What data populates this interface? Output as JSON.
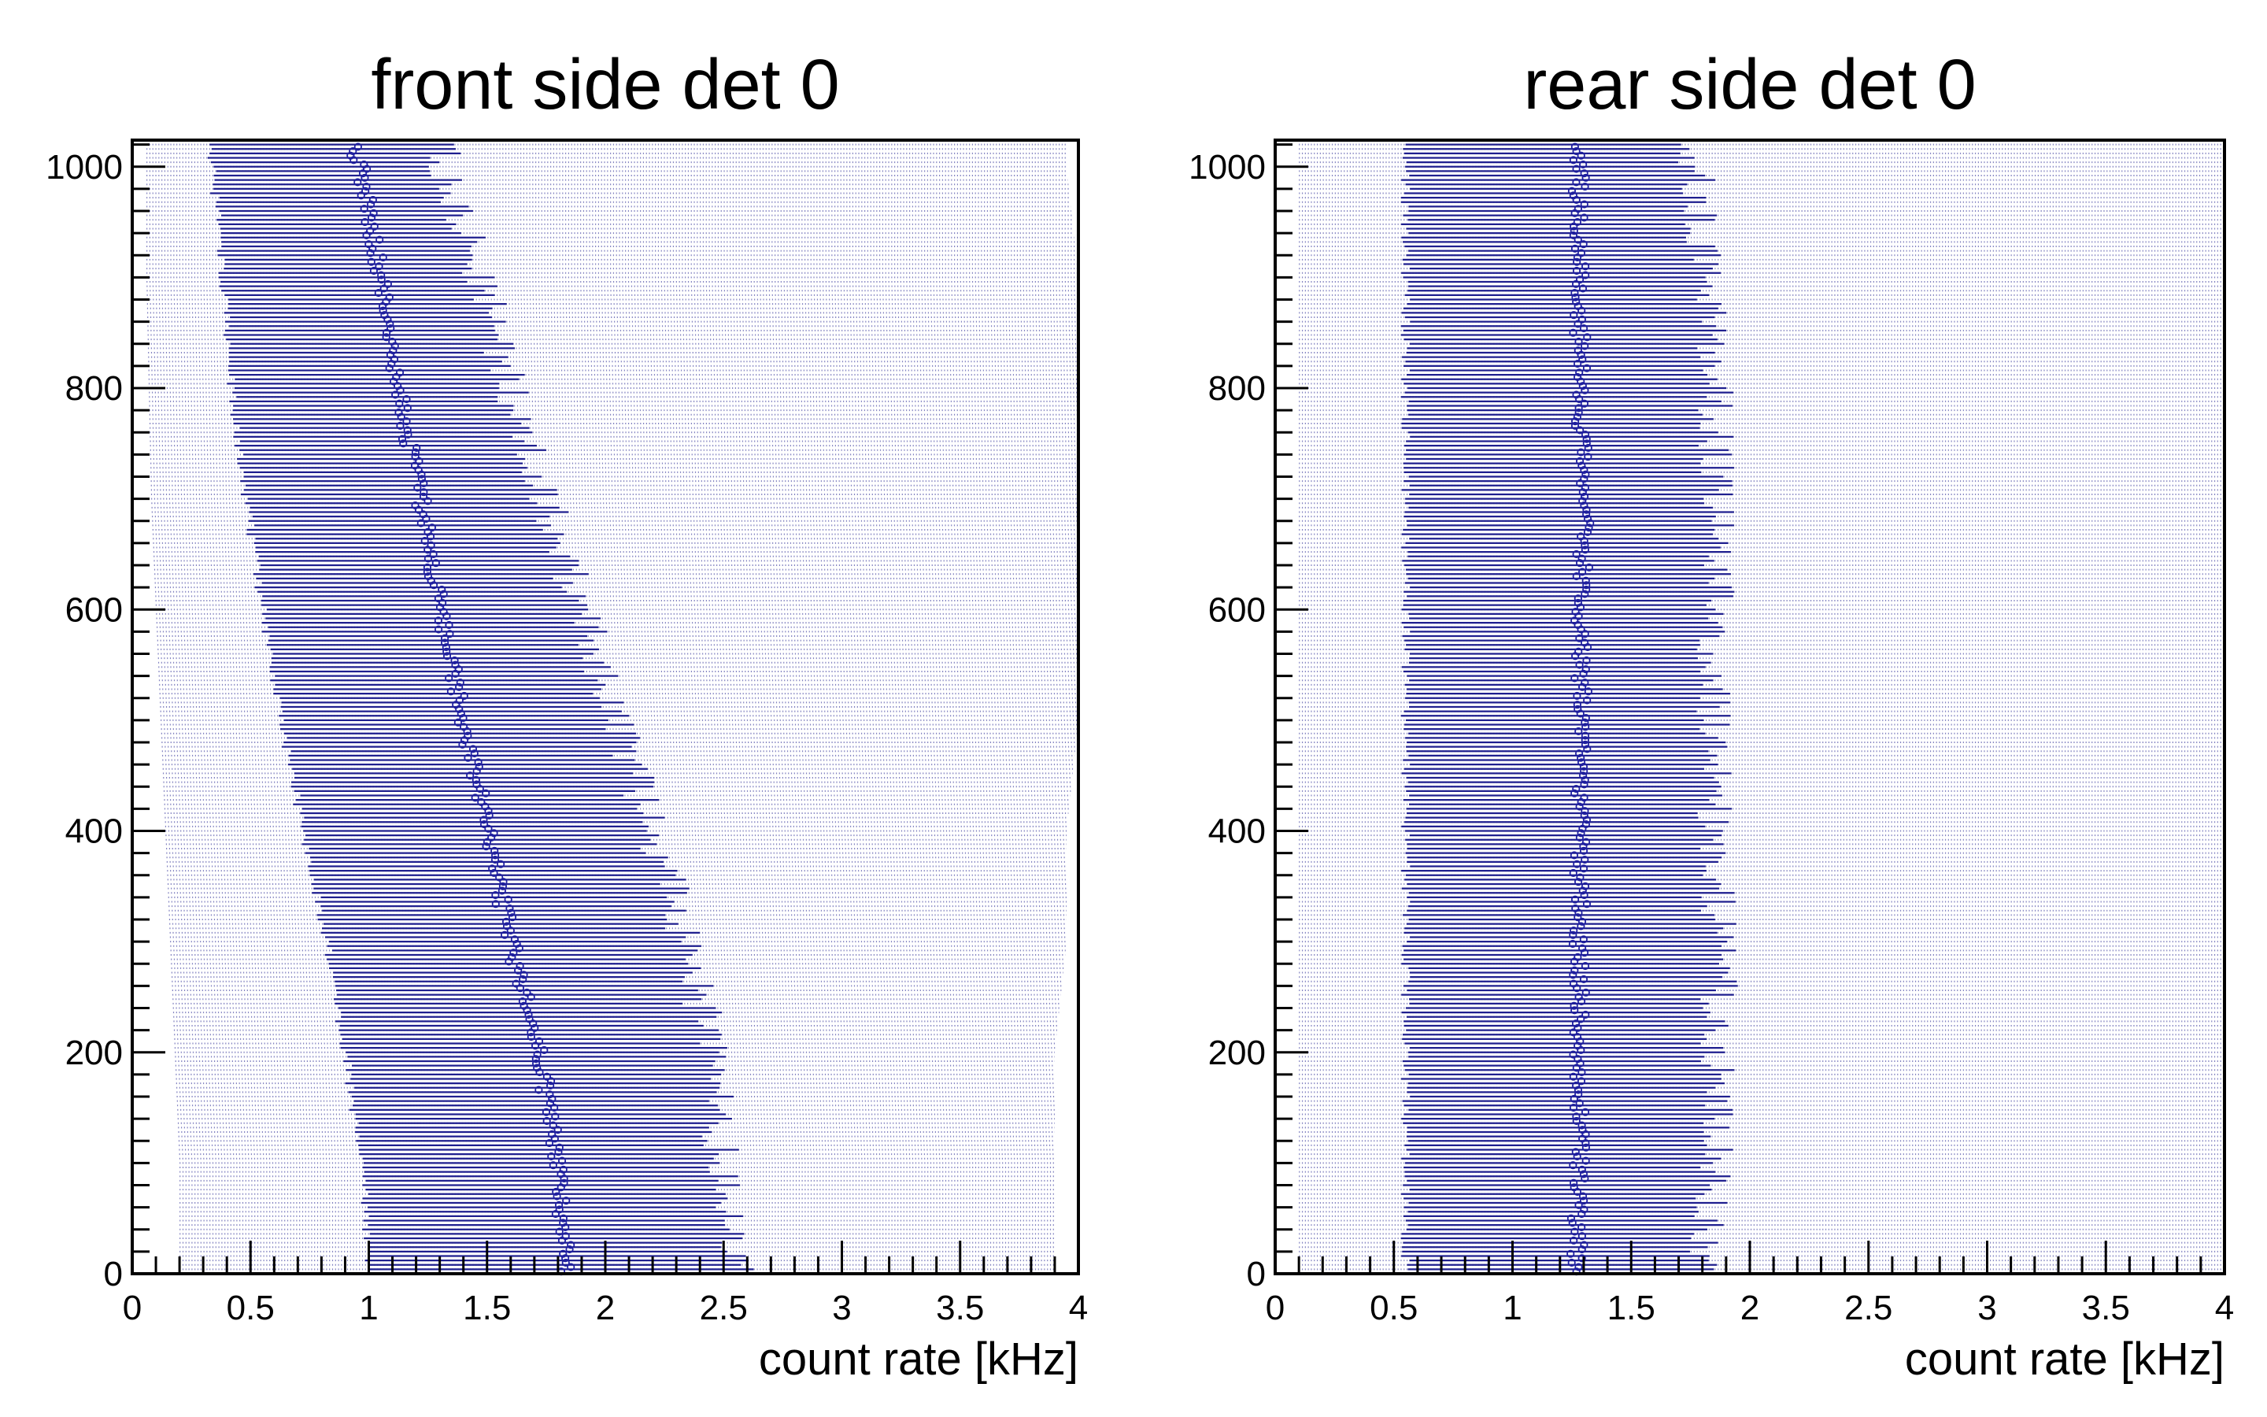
{
  "chart_data": [
    {
      "type": "scatter",
      "title": "front side det 0",
      "xlabel": "count rate [kHz]",
      "ylabel": "",
      "xlim": [
        0,
        4
      ],
      "ylim": [
        0,
        1024
      ],
      "x_ticks": [
        "0",
        "0.5",
        "1",
        "1.5",
        "2",
        "2.5",
        "3",
        "3.5",
        "4"
      ],
      "y_ticks": [
        "0",
        "200",
        "400",
        "600",
        "800",
        "1000"
      ],
      "grid": false,
      "legend": "none",
      "marker_color": "#1f1fa0",
      "band_color": "#1f1f8f",
      "series": [
        {
          "channel": [
            0,
            100,
            200,
            300,
            400,
            500,
            600,
            700,
            800,
            900,
            1000,
            1020
          ],
          "mean_rate": [
            1.84,
            1.8,
            1.72,
            1.6,
            1.5,
            1.4,
            1.3,
            1.22,
            1.13,
            1.05,
            0.97,
            0.93
          ],
          "band_low": [
            1.0,
            0.97,
            0.9,
            0.82,
            0.72,
            0.63,
            0.55,
            0.48,
            0.42,
            0.38,
            0.34,
            0.33
          ],
          "band_high": [
            2.55,
            2.5,
            2.45,
            2.35,
            2.2,
            2.05,
            1.9,
            1.75,
            1.6,
            1.48,
            1.33,
            1.3
          ],
          "tail_low": [
            0.2,
            0.2,
            0.18,
            0.16,
            0.14,
            0.12,
            0.1,
            0.08,
            0.07,
            0.06,
            0.06,
            0.06
          ],
          "tail_high": [
            3.9,
            3.9,
            3.9,
            3.95,
            3.95,
            4.0,
            4.0,
            4.0,
            4.0,
            4.0,
            3.95,
            3.95
          ]
        }
      ]
    },
    {
      "type": "scatter",
      "title": "rear side det 0",
      "xlabel": "count rate [kHz]",
      "ylabel": "",
      "xlim": [
        0,
        4
      ],
      "ylim": [
        0,
        1024
      ],
      "x_ticks": [
        "0",
        "0.5",
        "1",
        "1.5",
        "2",
        "2.5",
        "3",
        "3.5",
        "4"
      ],
      "y_ticks": [
        "0",
        "200",
        "400",
        "600",
        "800",
        "1000"
      ],
      "grid": false,
      "legend": "none",
      "marker_color": "#1f1fa0",
      "band_color": "#1f1f8f",
      "series": [
        {
          "channel": [
            0,
            100,
            200,
            300,
            400,
            500,
            600,
            700,
            800,
            900,
            1000,
            1020
          ],
          "mean_rate": [
            1.27,
            1.28,
            1.28,
            1.28,
            1.29,
            1.29,
            1.29,
            1.3,
            1.29,
            1.28,
            1.28,
            1.27
          ],
          "band_low": [
            0.55,
            0.55,
            0.55,
            0.55,
            0.55,
            0.55,
            0.55,
            0.55,
            0.55,
            0.55,
            0.55,
            0.55
          ],
          "band_high": [
            1.82,
            1.85,
            1.87,
            1.87,
            1.86,
            1.85,
            1.86,
            1.86,
            1.86,
            1.82,
            1.78,
            1.76
          ],
          "tail_low": [
            0.1,
            0.1,
            0.1,
            0.1,
            0.1,
            0.1,
            0.1,
            0.1,
            0.1,
            0.1,
            0.1,
            0.1
          ],
          "tail_high": [
            4.0,
            4.0,
            4.0,
            4.0,
            4.0,
            4.0,
            4.0,
            4.0,
            4.0,
            4.0,
            4.0,
            4.0
          ]
        }
      ]
    }
  ]
}
